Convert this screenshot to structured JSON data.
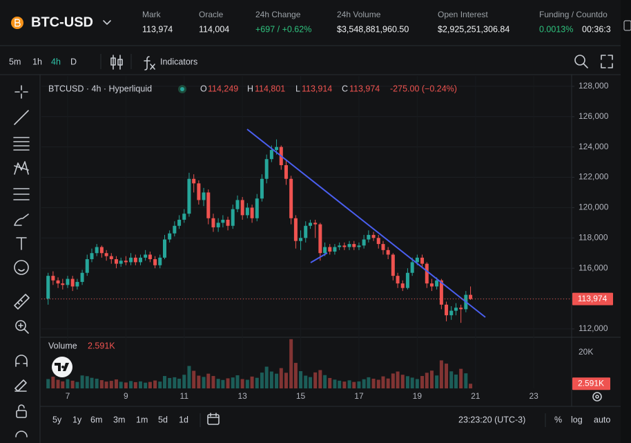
{
  "header": {
    "symbol": "BTC-USD",
    "stats": [
      {
        "label": "Mark",
        "value": "113,974"
      },
      {
        "label": "Oracle",
        "value": "114,004"
      },
      {
        "label": "24h Change",
        "value": "+697 / +0.62%"
      },
      {
        "label": "24h Volume",
        "value": "$3,548,881,960.50"
      },
      {
        "label": "Open Interest",
        "value": "$2,925,251,306.84"
      },
      {
        "label": "Funding / Countdo",
        "value": "0.0013%",
        "extra": "00:36:3"
      }
    ]
  },
  "toolbar": {
    "intervals": [
      "5m",
      "1h",
      "4h",
      "D"
    ],
    "active_interval": 2,
    "indicators": "Indicators"
  },
  "chart_data": {
    "type": "candlestick",
    "title": "BTCUSD · 4h · Hyperliquid",
    "ohlc_legend": [
      {
        "key": "O",
        "value": "114,249"
      },
      {
        "key": "H",
        "value": "114,801"
      },
      {
        "key": "L",
        "value": "113,914"
      },
      {
        "key": "C",
        "value": "113,974"
      }
    ],
    "change": "-275.00 (−0.24%)",
    "colors": {
      "up": "#26a69a",
      "down": "#ef5350"
    },
    "grid": true,
    "x": [
      6.33,
      6.5,
      6.67,
      6.83,
      7,
      7.17,
      7.33,
      7.5,
      7.67,
      7.83,
      8,
      8.17,
      8.33,
      8.5,
      8.67,
      8.83,
      9,
      9.17,
      9.33,
      9.5,
      9.67,
      9.83,
      10,
      10.17,
      10.33,
      10.5,
      10.67,
      10.83,
      11,
      11.17,
      11.33,
      11.5,
      11.67,
      11.83,
      12,
      12.17,
      12.33,
      12.5,
      12.67,
      12.83,
      13,
      13.17,
      13.33,
      13.5,
      13.67,
      13.83,
      14,
      14.17,
      14.33,
      14.5,
      14.67,
      14.83,
      15,
      15.17,
      15.33,
      15.5,
      15.67,
      15.83,
      16,
      16.17,
      16.33,
      16.5,
      16.67,
      16.83,
      17,
      17.17,
      17.33,
      17.5,
      17.67,
      17.83,
      18,
      18.17,
      18.33,
      18.5,
      18.67,
      18.83,
      19,
      19.17,
      19.33,
      19.5,
      19.67,
      19.83,
      20,
      20.17,
      20.33,
      20.5,
      20.67,
      20.83
    ],
    "open": [
      114000,
      115500,
      115200,
      115000,
      114900,
      115300,
      114800,
      115100,
      115700,
      116600,
      117000,
      117400,
      117000,
      116800,
      116600,
      116300,
      116500,
      116400,
      116700,
      116400,
      116700,
      116900,
      116600,
      116200,
      116700,
      117900,
      118300,
      118800,
      119200,
      119600,
      121900,
      121600,
      120500,
      121000,
      119300,
      118700,
      119000,
      119200,
      118800,
      119900,
      120500,
      119500,
      120000,
      119300,
      120600,
      121900,
      123200,
      123800,
      124000,
      122800,
      121900,
      119300,
      117800,
      118000,
      118800,
      119000,
      118900,
      117000,
      117400,
      117100,
      117400,
      117500,
      117400,
      117600,
      117400,
      117500,
      117900,
      118200,
      118000,
      117600,
      117200,
      116900,
      115500,
      115000,
      114700,
      115700,
      116400,
      116700,
      116300,
      115000,
      114800,
      115200,
      113600,
      112900,
      113200,
      113400,
      113300,
      114249
    ],
    "high": [
      115700,
      115800,
      115400,
      115300,
      115500,
      115500,
      115300,
      115900,
      116900,
      117300,
      117600,
      117500,
      117200,
      117000,
      116800,
      116700,
      116800,
      117000,
      116900,
      116900,
      117200,
      117100,
      116800,
      116900,
      118200,
      118500,
      119100,
      119500,
      119900,
      122300,
      122200,
      121800,
      121300,
      121200,
      119600,
      119300,
      119500,
      119400,
      120200,
      120800,
      120700,
      120300,
      120200,
      120900,
      122200,
      123500,
      124100,
      124500,
      124100,
      123100,
      122100,
      119500,
      118500,
      119100,
      119200,
      119200,
      119000,
      117700,
      117600,
      117600,
      117700,
      117700,
      117800,
      117800,
      117700,
      118200,
      118500,
      118400,
      118200,
      117800,
      117400,
      117000,
      115700,
      115200,
      116000,
      116700,
      116900,
      116900,
      116400,
      115300,
      115400,
      115300,
      113800,
      113500,
      113700,
      113600,
      114500,
      114801
    ],
    "low": [
      113600,
      114900,
      114700,
      114600,
      114700,
      114500,
      114600,
      114900,
      115500,
      116400,
      116800,
      116700,
      116500,
      116300,
      116000,
      116100,
      116200,
      116200,
      116200,
      116200,
      116500,
      116400,
      116000,
      116000,
      116600,
      117700,
      118100,
      118600,
      119000,
      119400,
      121000,
      120200,
      120100,
      118900,
      118400,
      118400,
      118700,
      118500,
      118600,
      119700,
      119200,
      119300,
      119000,
      119100,
      120400,
      121600,
      123000,
      123500,
      122500,
      121500,
      118900,
      117300,
      117200,
      117700,
      118600,
      118000,
      116500,
      116800,
      116900,
      116900,
      117200,
      117200,
      117200,
      117200,
      117200,
      117300,
      117700,
      117800,
      117300,
      116900,
      116600,
      115200,
      114700,
      114500,
      114600,
      115500,
      116200,
      116000,
      114700,
      114500,
      114600,
      113300,
      112500,
      112600,
      112900,
      112400,
      113100,
      113914
    ],
    "close": [
      115500,
      115200,
      115000,
      114900,
      115300,
      114800,
      115100,
      115700,
      116600,
      117000,
      117400,
      117000,
      116800,
      116600,
      116300,
      116500,
      116400,
      116700,
      116400,
      116700,
      116900,
      116600,
      116200,
      116700,
      117900,
      118300,
      118800,
      119200,
      119600,
      121900,
      121600,
      120500,
      121000,
      119300,
      118700,
      119000,
      119200,
      118800,
      119900,
      120500,
      119500,
      120000,
      119300,
      120600,
      121900,
      123200,
      123800,
      124000,
      122800,
      121900,
      119300,
      117800,
      118000,
      118800,
      119000,
      118900,
      117000,
      117400,
      117100,
      117400,
      117500,
      117400,
      117600,
      117400,
      117500,
      117900,
      118200,
      118000,
      117600,
      117200,
      116900,
      115500,
      115000,
      114700,
      115700,
      116400,
      116700,
      116300,
      115000,
      114800,
      115200,
      113600,
      112900,
      113200,
      113400,
      113300,
      114249,
      113974
    ],
    "xlim": [
      6.1,
      24.3
    ],
    "xticks": [
      7,
      9,
      11,
      13,
      15,
      17,
      19,
      21,
      23
    ],
    "ylim": [
      111450,
      128680
    ],
    "yticks": [
      {
        "value": 112000,
        "label": "112,000"
      },
      {
        "value": 114000,
        "label": "114,000"
      },
      {
        "value": 116000,
        "label": "116,000"
      },
      {
        "value": 118000,
        "label": "118,000"
      },
      {
        "value": 120000,
        "label": "120,000"
      },
      {
        "value": 122000,
        "label": "122,000"
      },
      {
        "value": 124000,
        "label": "124,000"
      },
      {
        "value": 126000,
        "label": "126,000"
      },
      {
        "value": 128000,
        "label": "128,000"
      }
    ],
    "last_price": {
      "value": 113974,
      "label": "113,974"
    },
    "volume": {
      "name": "Volume",
      "current_label": "2.591K",
      "values": [
        5200,
        6500,
        4800,
        3900,
        5100,
        4300,
        3600,
        7200,
        6800,
        5900,
        5400,
        4600,
        3800,
        4200,
        5000,
        3700,
        3300,
        4100,
        3500,
        3900,
        3200,
        3600,
        4400,
        3800,
        6900,
        5800,
        6200,
        5400,
        7600,
        12500,
        9800,
        7100,
        6400,
        8200,
        6900,
        5300,
        4700,
        5600,
        6100,
        7300,
        5200,
        4800,
        6600,
        5900,
        8800,
        12100,
        9400,
        8200,
        11300,
        8700,
        27400,
        14200,
        9600,
        7100,
        6300,
        8900,
        10200,
        7400,
        5800,
        4900,
        4300,
        3800,
        4500,
        3600,
        3900,
        5100,
        6200,
        5400,
        4800,
        6700,
        5500,
        8300,
        9400,
        7600,
        6800,
        6000,
        5200,
        6900,
        8700,
        9900,
        7200,
        15600,
        13800,
        9500,
        7700,
        10900,
        8400,
        2591
      ],
      "ylim": [
        0,
        28460
      ],
      "yticks": [
        {
          "value": 20000,
          "label": "20K"
        }
      ]
    }
  },
  "bottom_bar": {
    "ranges": [
      "5y",
      "1y",
      "6m",
      "3m",
      "1m",
      "5d",
      "1d"
    ],
    "clock": "23:23:20 (UTC-3)",
    "options": [
      "%",
      "log",
      "auto"
    ]
  }
}
